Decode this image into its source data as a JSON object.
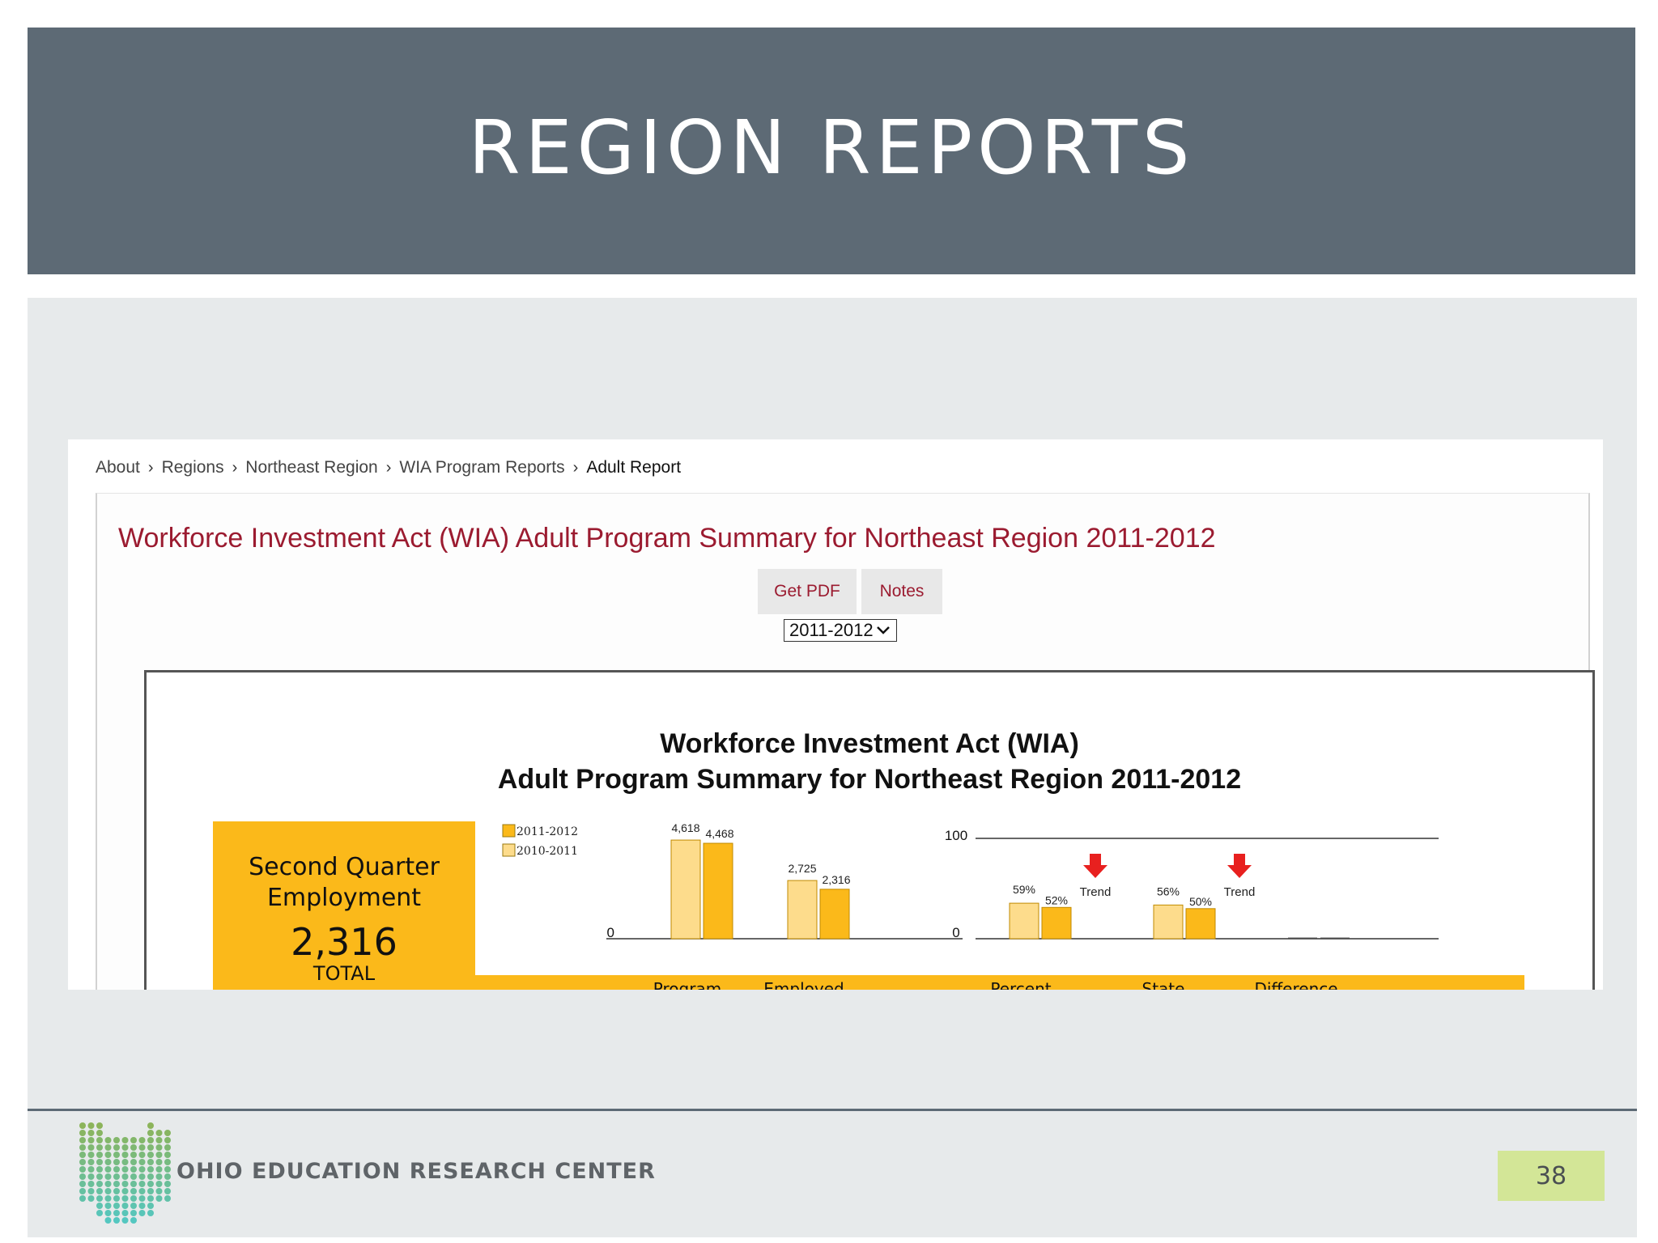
{
  "slide": {
    "title": "REGION REPORTS",
    "organization": "OHIO EDUCATION RESEARCH CENTER",
    "page_number": "38"
  },
  "breadcrumb": {
    "items": [
      "About",
      "Regions",
      "Northeast Region",
      "WIA Program Reports",
      "Adult Report"
    ]
  },
  "report": {
    "heading": "Workforce Investment Act (WIA) Adult Program Summary for Northeast Region 2011-2012",
    "pdf_label": "Get PDF",
    "notes_label": "Notes",
    "year_selected": "2011-2012"
  },
  "kpi": {
    "label_line1": "Second Quarter",
    "label_line2": "Employment",
    "value": "2,316",
    "unit": "TOTAL"
  },
  "colors": {
    "header": "#5d6a75",
    "heading_red": "#9b1b30",
    "bar_current": "#fbb91a",
    "bar_prior": "#fddc8c",
    "trend_down": "#e8201f",
    "page_badge": "#d3e697"
  },
  "chart_data": {
    "type": "bar",
    "title": "Workforce Investment Act (WIA)",
    "subtitle": "Adult Program Summary for Northeast Region 2011-2012",
    "legend": {
      "placement": "left",
      "entries": [
        "2011-2012",
        "2010-2011"
      ]
    },
    "counts": {
      "ylim": [
        0,
        5000
      ],
      "y_ticks_shown": [
        "0"
      ],
      "categories": [
        "Program",
        "Employed"
      ],
      "series": [
        {
          "name": "2010-2011",
          "values": [
            4618,
            2725
          ],
          "labels": [
            "4,618",
            "2,725"
          ]
        },
        {
          "name": "2011-2012",
          "values": [
            4468,
            2316
          ],
          "labels": [
            "4,468",
            "2,316"
          ]
        }
      ]
    },
    "rates": {
      "ylim": [
        0,
        100
      ],
      "y_ticks_shown": [
        "100",
        "0"
      ],
      "categories": [
        "Percent",
        "State",
        "Difference"
      ],
      "series": [
        {
          "name": "2010-2011",
          "values": [
            59,
            56,
            0
          ],
          "labels": [
            "59%",
            "56%",
            ""
          ]
        },
        {
          "name": "2011-2012",
          "values": [
            52,
            50,
            0
          ],
          "labels": [
            "52%",
            "50%",
            ""
          ]
        }
      ],
      "trend": [
        {
          "category": "Percent",
          "direction": "down",
          "label": "Trend"
        },
        {
          "category": "State",
          "direction": "down",
          "label": "Trend"
        }
      ]
    }
  }
}
